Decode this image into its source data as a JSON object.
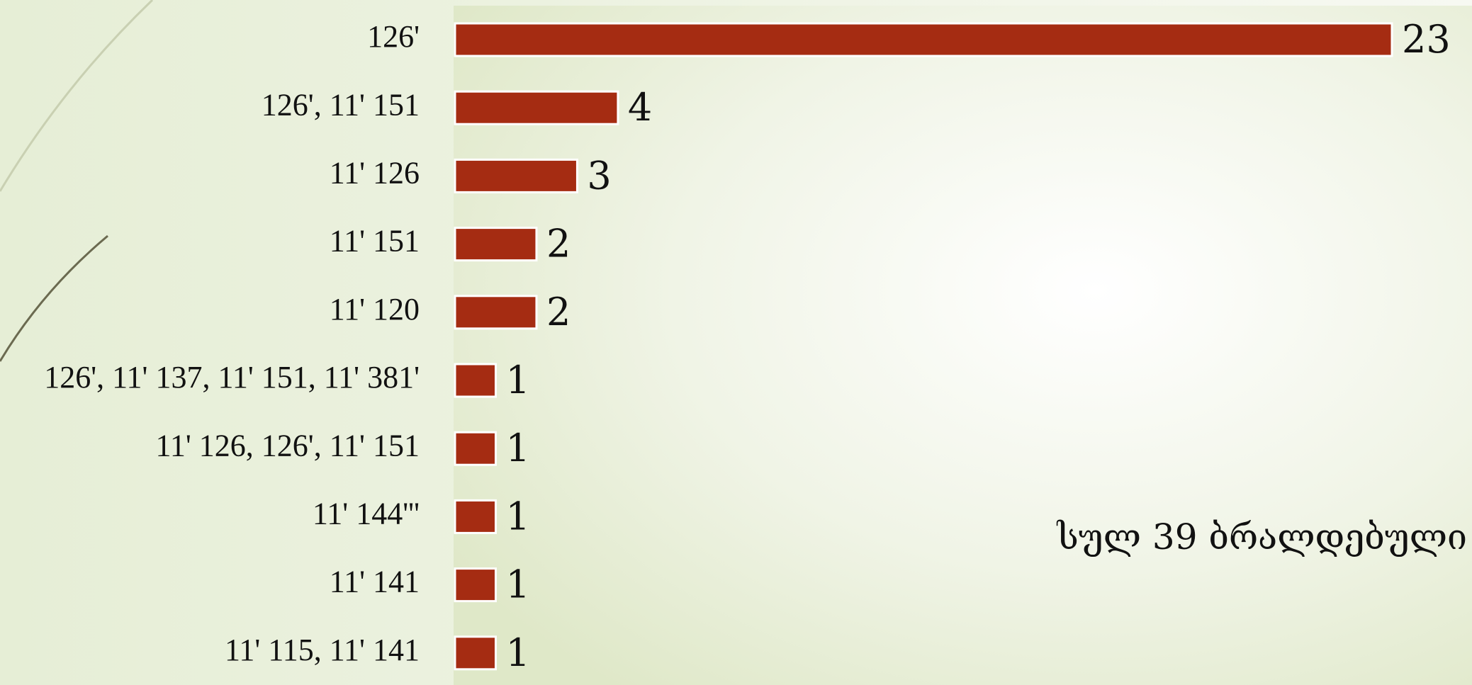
{
  "chart_data": {
    "type": "bar",
    "orientation": "horizontal",
    "categories": [
      "126'",
      "126', 11' 151",
      "11' 126",
      "11' 151",
      "11' 120",
      "126', 11' 137, 11' 151, 11' 381'",
      "11' 126, 126', 11' 151",
      "11' 144'''",
      "11' 141",
      "11' 115, 11' 141"
    ],
    "values": [
      23,
      4,
      3,
      2,
      2,
      1,
      1,
      1,
      1,
      1
    ],
    "color": "#a52c12",
    "annotation": "სულ 39 ბრალდებული"
  }
}
